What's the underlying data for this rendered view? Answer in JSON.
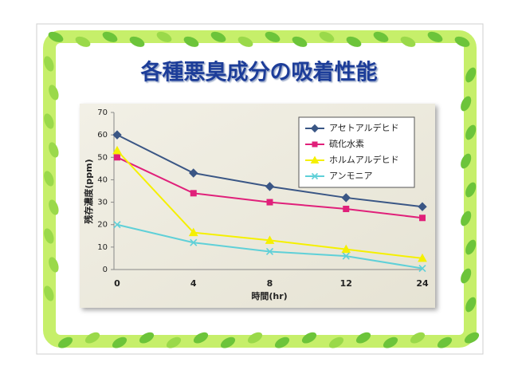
{
  "chart_data": {
    "type": "line",
    "title": "各種悪臭成分の吸着性能",
    "x_label": "時間(hr)",
    "y_label": "残存濃度(ppm)",
    "categories": [
      "0",
      "4",
      "8",
      "12",
      "24"
    ],
    "ylim": [
      0,
      70
    ],
    "yticks": [
      0,
      10,
      20,
      30,
      40,
      50,
      60,
      70
    ],
    "legend": "top-right",
    "series": [
      {
        "name": "アセトアルデヒド",
        "color": "#3a5685",
        "marker": "diamond",
        "values": [
          60,
          43,
          37,
          32,
          28
        ]
      },
      {
        "name": "硫化水素",
        "color": "#e0207a",
        "marker": "square",
        "values": [
          50,
          34,
          30,
          27,
          23
        ]
      },
      {
        "name": "ホルムアルデヒド",
        "color": "#f5f000",
        "marker": "triangle",
        "values": [
          53,
          16.5,
          13,
          9,
          5
        ]
      },
      {
        "name": "アンモニア",
        "color": "#5fd0d8",
        "marker": "x",
        "values": [
          20,
          12,
          8,
          6,
          0.5
        ]
      }
    ]
  }
}
